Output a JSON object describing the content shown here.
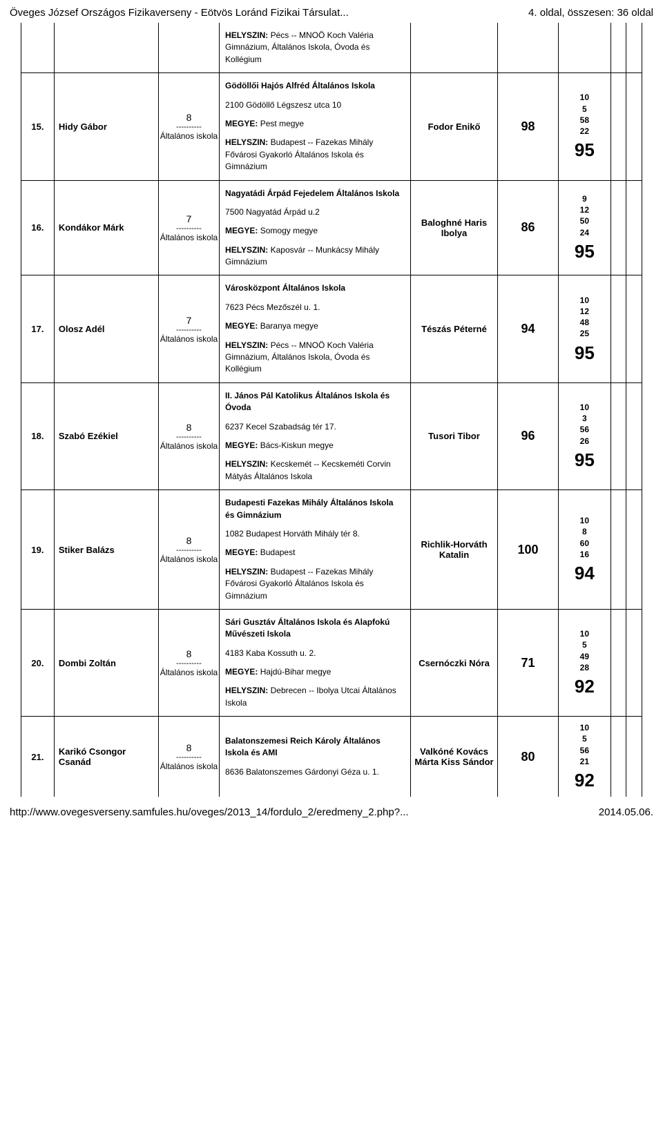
{
  "top_left": "Öveges József Országos Fizikaverseny - Eötvös Loránd Fizikai Társulat...",
  "top_right": "4. oldal, összesen: 36 oldal",
  "footer_left": "http://www.ovegesverseny.samfules.hu/oveges/2013_14/fordulo_2/eredmeny_2.php?...",
  "footer_right": "2014.05.06.",
  "megye_label": "MEGYE:",
  "hely_label": "HELYSZIN:",
  "class_divider": "----------",
  "class_level": "Általános iskola",
  "head_block": {
    "hely_prefix": "HELYSZIN:",
    "hely_text": " Pécs -- MNOÖ Koch Valéria Gimnázium, Általános Iskola, Óvoda és Kollégium"
  },
  "rows": [
    {
      "rank": "15.",
      "student": "Hidy Gábor",
      "class_num": "8",
      "school_name": "Gödöllői Hajós Alfréd Általános Iskola",
      "school_addr": "2100 Gödöllő Légszesz utca 10",
      "megye": " Pest megye",
      "hely": " Budapest -- Fazekas Mihály Fővárosi Gyakorló Általános Iskola és Gimnázium",
      "teacher": "Fodor Enikő",
      "score": "98",
      "pts": [
        "10",
        "5",
        "58",
        "22"
      ],
      "total": "95"
    },
    {
      "rank": "16.",
      "student": "Kondákor Márk",
      "class_num": "7",
      "school_name": "Nagyatádi Árpád Fejedelem Általános Iskola",
      "school_addr": "7500 Nagyatád Árpád u.2",
      "megye": " Somogy megye",
      "hely": " Kaposvár -- Munkácsy Mihály Gimnázium",
      "teacher": "Baloghné Haris Ibolya",
      "score": "86",
      "pts": [
        "9",
        "12",
        "50",
        "24"
      ],
      "total": "95"
    },
    {
      "rank": "17.",
      "student": "Olosz Adél",
      "class_num": "7",
      "school_name": "Városközpont Általános Iskola",
      "school_addr": "7623 Pécs Mezőszél u. 1.",
      "megye": " Baranya megye",
      "hely": " Pécs -- MNOÖ Koch Valéria Gimnázium, Általános Iskola, Óvoda és Kollégium",
      "teacher": "Tészás Péterné",
      "score": "94",
      "pts": [
        "10",
        "12",
        "48",
        "25"
      ],
      "total": "95"
    },
    {
      "rank": "18.",
      "student": "Szabó Ezékiel",
      "class_num": "8",
      "school_name": "II. János Pál Katolikus Általános Iskola és Óvoda",
      "school_addr": "6237 Kecel Szabadság tér 17.",
      "megye": " Bács-Kiskun megye",
      "hely": " Kecskemét -- Kecskeméti Corvin Mátyás Általános Iskola",
      "teacher": "Tusori Tibor",
      "score": "96",
      "pts": [
        "10",
        "3",
        "56",
        "26"
      ],
      "total": "95"
    },
    {
      "rank": "19.",
      "student": "Stiker Balázs",
      "class_num": "8",
      "school_name": "Budapesti Fazekas Mihály Általános Iskola és Gimnázium",
      "school_addr": "1082 Budapest Horváth Mihály tér 8.",
      "megye": " Budapest",
      "hely": " Budapest -- Fazekas Mihály Fővárosi Gyakorló Általános Iskola és Gimnázium",
      "teacher": "Richlik-Horváth Katalin",
      "score": "100",
      "pts": [
        "10",
        "8",
        "60",
        "16"
      ],
      "total": "94"
    },
    {
      "rank": "20.",
      "student": "Dombi Zoltán",
      "class_num": "8",
      "school_name": "Sári Gusztáv Általános Iskola és Alapfokú Művészeti Iskola",
      "school_addr": "4183 Kaba Kossuth u. 2.",
      "megye": " Hajdú-Bihar megye",
      "hely": " Debrecen -- Ibolya Utcai Általános Iskola",
      "teacher": "Csernóczki Nóra",
      "score": "71",
      "pts": [
        "10",
        "5",
        "49",
        "28"
      ],
      "total": "92"
    }
  ],
  "lastrow": {
    "rank": "21.",
    "student": "Karikó Csongor Csanád",
    "class_num": "8",
    "school_name": "Balatonszemesi Reich Károly Általános Iskola és AMI",
    "school_addr": "8636 Balatonszemes Gárdonyi Géza u. 1.",
    "teacher": "Valkóné Kovács Márta Kiss Sándor",
    "score": "80",
    "pts": [
      "10",
      "5",
      "56",
      "21"
    ],
    "total": "92"
  }
}
